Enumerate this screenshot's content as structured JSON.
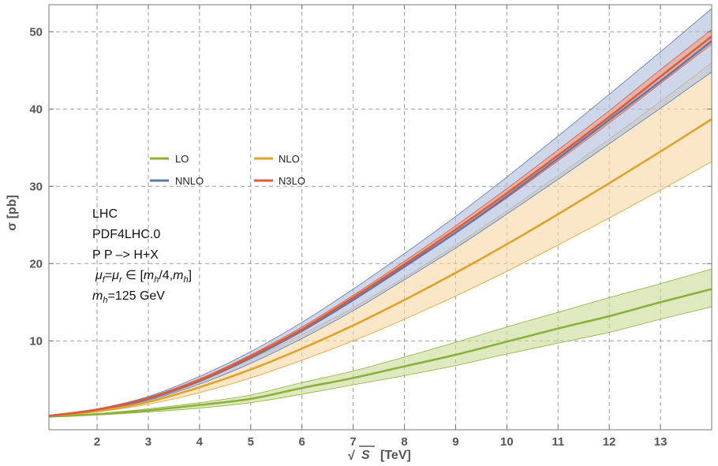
{
  "chart_data": {
    "type": "area",
    "xlabel_prefix": "√",
    "xlabel_symbol": "S",
    "xlabel_unit": "[TeV]",
    "ylabel": "σ [pb]",
    "xlim": [
      1.06,
      14
    ],
    "ylim": [
      -1.5,
      53.5
    ],
    "x_ticks": [
      2,
      3,
      4,
      5,
      6,
      7,
      8,
      9,
      10,
      11,
      12,
      13
    ],
    "y_ticks": [
      10,
      20,
      30,
      40,
      50
    ],
    "grid": true,
    "legend_position": "upper-left",
    "x": [
      1.06,
      2,
      3,
      4,
      5,
      6,
      7,
      8,
      9,
      10,
      11,
      12,
      13,
      14
    ],
    "series": [
      {
        "name": "LO",
        "color": "#8db03a",
        "band_color": "#c9dc9a",
        "central": [
          0.2,
          0.5,
          1.0,
          1.7,
          2.5,
          3.9,
          5.2,
          6.7,
          8.2,
          9.9,
          11.6,
          13.2,
          15.0,
          16.7
        ],
        "upper": [
          0.25,
          0.6,
          1.2,
          2.0,
          3.0,
          4.6,
          6.1,
          7.9,
          9.8,
          11.8,
          13.7,
          15.6,
          17.4,
          19.3
        ],
        "lower": [
          0.15,
          0.4,
          0.8,
          1.3,
          2.0,
          3.1,
          4.3,
          5.5,
          6.8,
          8.3,
          9.7,
          11.1,
          12.8,
          14.4
        ]
      },
      {
        "name": "NLO",
        "color": "#e3a02a",
        "band_color": "#f6d9a4",
        "central": [
          0.3,
          0.9,
          2.1,
          4.0,
          6.3,
          9.0,
          12.0,
          15.3,
          18.8,
          22.5,
          26.4,
          30.4,
          34.5,
          38.7
        ],
        "upper": [
          0.35,
          1.1,
          2.6,
          4.8,
          7.6,
          10.8,
          14.3,
          18.2,
          22.4,
          26.8,
          31.4,
          36.1,
          41.0,
          46.0
        ],
        "lower": [
          0.25,
          0.8,
          1.8,
          3.3,
          5.2,
          7.5,
          10.0,
          12.8,
          15.8,
          19.0,
          22.4,
          25.9,
          29.5,
          33.2
        ]
      },
      {
        "name": "NNLO",
        "color": "#5b79b0",
        "band_color": "#aebfdc",
        "central": [
          0.3,
          1.1,
          2.5,
          4.8,
          7.8,
          11.3,
          15.3,
          19.6,
          24.0,
          28.7,
          33.6,
          38.6,
          43.6,
          48.8
        ],
        "upper": [
          0.35,
          1.2,
          2.8,
          5.4,
          8.6,
          12.4,
          16.7,
          21.3,
          26.1,
          31.2,
          36.5,
          41.9,
          47.4,
          53.0
        ],
        "lower": [
          0.25,
          1.0,
          2.3,
          4.4,
          7.1,
          10.3,
          13.9,
          17.9,
          22.0,
          26.4,
          30.9,
          35.5,
          40.1,
          44.8
        ]
      },
      {
        "name": "N3LO",
        "color": "#e05a33",
        "band_color": "#ef9c83",
        "central": [
          0.3,
          1.1,
          2.6,
          4.9,
          8.0,
          11.5,
          15.6,
          19.9,
          24.4,
          29.1,
          34.0,
          39.0,
          44.2,
          49.4
        ],
        "upper": [
          0.32,
          1.15,
          2.7,
          5.1,
          8.2,
          11.8,
          15.9,
          20.3,
          24.9,
          29.7,
          34.7,
          39.8,
          45.1,
          50.3
        ],
        "lower": [
          0.28,
          1.05,
          2.5,
          4.7,
          7.8,
          11.2,
          15.2,
          19.5,
          23.9,
          28.5,
          33.3,
          38.2,
          43.3,
          48.4
        ]
      }
    ],
    "annotations": {
      "line1": "LHC",
      "line2": "PDF4LHC.0",
      "line3": "P P –> H+X",
      "line4_mu_f": "μ",
      "line4_mu_f_sub": "f",
      "line4_eq": "=",
      "line4_mu_r": "μ",
      "line4_mu_r_sub": "r",
      "line4_in": " ∈ [",
      "line4_m1": "m",
      "line4_m1_sub": "h",
      "line4_mid": "/4,",
      "line4_m2": "m",
      "line4_m2_sub": "h",
      "line4_close": "]",
      "line5_m": "m",
      "line5_m_sub": "h",
      "line5_rest": "=125 GeV"
    }
  }
}
